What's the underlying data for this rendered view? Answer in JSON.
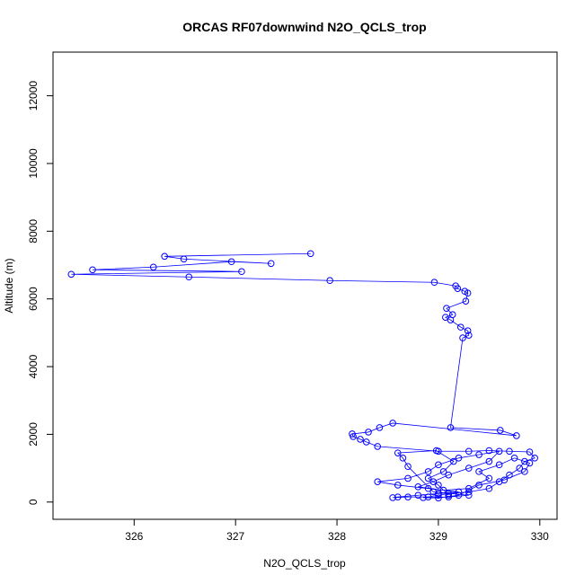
{
  "chart_data": {
    "type": "line",
    "title": "ORCAS RF07downwind N2O_QCLS_trop",
    "x_label": "N2O_QCLS_trop",
    "y_label": "Altitude (m)",
    "color": "#0000ff",
    "markers": true,
    "xlim": [
      325.2,
      330.17
    ],
    "ylim": [
      -510,
      13290
    ],
    "xticks": [
      326,
      327,
      328,
      329,
      330
    ],
    "yticks": [
      0,
      2000,
      4000,
      6000,
      8000,
      10000,
      12000
    ],
    "x": [
      327.74,
      326.3,
      326.49,
      327.35,
      326.96,
      326.19,
      325.59,
      327.06,
      325.38,
      326.54,
      327.93,
      328.96,
      329.17,
      329.19,
      329.26,
      329.29,
      329.27,
      329.08,
      329.14,
      329.07,
      329.12,
      329.22,
      329.29,
      329.3,
      329.24,
      329.12,
      329.61,
      329.77,
      328.55,
      328.42,
      328.31,
      328.15,
      328.16,
      328.23,
      328.29,
      328.4,
      329.0,
      329.3,
      329.5,
      329.7,
      329.9,
      329.95,
      329.85,
      329.8,
      329.7,
      329.6,
      329.5,
      329.3,
      329.1,
      329.0,
      328.9,
      328.7,
      328.55,
      328.6,
      328.8,
      329.0,
      329.2,
      328.9,
      328.6,
      328.4,
      328.7,
      328.9,
      329.0,
      329.2,
      329.4,
      329.6,
      329.5,
      329.3,
      329.1,
      328.95,
      328.8,
      329.05,
      329.3,
      329.5,
      329.4,
      329.6,
      329.75,
      329.9,
      329.85,
      329.65,
      329.4,
      329.2,
      329.0,
      328.85,
      329.1,
      329.3,
      328.95,
      328.7,
      328.65,
      328.6,
      328.98,
      329.15,
      329.05,
      328.9,
      329.0,
      329.1
    ],
    "values": [
      7338,
      7258,
      7179,
      7046,
      7100,
      6940,
      6861,
      6808,
      6728,
      6649,
      6543,
      6490,
      6384,
      6305,
      6225,
      6172,
      5934,
      5722,
      5536,
      5457,
      5378,
      5166,
      5060,
      4927,
      4848,
      2199,
      2119,
      1960,
      2331,
      2199,
      2066,
      2013,
      1934,
      1854,
      1775,
      1642,
      1500,
      1500,
      1520,
      1500,
      1480,
      1300,
      1200,
      1000,
      800,
      600,
      400,
      300,
      250,
      200,
      150,
      150,
      130,
      150,
      200,
      250,
      300,
      400,
      500,
      600,
      700,
      900,
      1100,
      1300,
      1400,
      1500,
      1200,
      1000,
      800,
      600,
      450,
      350,
      400,
      700,
      900,
      1100,
      1300,
      1150,
      900,
      650,
      500,
      200,
      120,
      130,
      150,
      200,
      300,
      1050,
      1300,
      1450,
      1520,
      1200,
      900,
      700,
      500,
      200
    ]
  }
}
